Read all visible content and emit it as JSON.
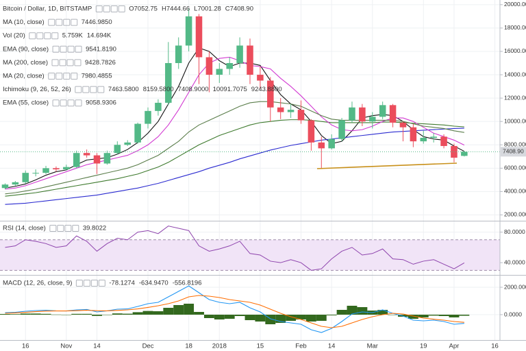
{
  "chart_data": {
    "type": "candlestick",
    "title": "Bitcoin / Dollar, 1D, BITSTAMP",
    "ohlc_header": [
      "O7052.75",
      "H7444.66",
      "L7001.28",
      "C7408.90"
    ],
    "categories": [
      null,
      null,
      "16",
      null,
      null,
      null,
      "Nov",
      null,
      null,
      "14",
      null,
      null,
      null,
      null,
      "Dec",
      null,
      null,
      null,
      "18",
      null,
      null,
      "2018",
      null,
      null,
      null,
      "15",
      null,
      null,
      null,
      "Feb",
      null,
      null,
      "14",
      null,
      null,
      null,
      "Mar",
      null,
      null,
      null,
      null,
      "19",
      null,
      null,
      "Apr",
      null,
      null,
      null,
      "16"
    ],
    "open": [
      4300,
      4600,
      4800,
      5600,
      5600,
      6000,
      5900,
      6100,
      7300,
      7100,
      6400,
      7300,
      8000,
      8200,
      9800,
      10900,
      11600,
      15000,
      16500,
      19000,
      15500,
      14000,
      14500,
      15000,
      16500,
      14000,
      13500,
      11200,
      10800,
      11000,
      10100,
      8200,
      7700,
      8500,
      10100,
      11200,
      10000,
      10400,
      11400,
      9900,
      9500,
      8300,
      8600,
      8700,
      7900,
      7052.75,
      null,
      null,
      null
    ],
    "high": [
      4700,
      4900,
      5800,
      5900,
      6200,
      6150,
      6300,
      7500,
      7600,
      7300,
      7500,
      8300,
      8400,
      9900,
      11200,
      11900,
      16800,
      17200,
      19700,
      19200,
      16000,
      15000,
      15500,
      17200,
      17100,
      14700,
      13800,
      12000,
      11500,
      11800,
      10200,
      8700,
      8900,
      10300,
      11700,
      11500,
      10800,
      11700,
      11500,
      10000,
      9800,
      9200,
      9000,
      8900,
      8100,
      7444.66,
      null,
      null,
      null
    ],
    "low": [
      4200,
      4500,
      4700,
      5300,
      5500,
      5700,
      5800,
      6000,
      6900,
      5500,
      6300,
      7200,
      7900,
      8100,
      9400,
      10500,
      11400,
      14500,
      16000,
      13200,
      12500,
      13300,
      14000,
      14600,
      13200,
      12800,
      10000,
      10200,
      10300,
      9800,
      7500,
      6000,
      7600,
      8300,
      9900,
      9600,
      9400,
      10200,
      9500,
      8300,
      7800,
      8100,
      8200,
      7700,
      6500,
      7001.28,
      null,
      null,
      null
    ],
    "close": [
      4600,
      4800,
      5600,
      5600,
      6000,
      5900,
      6100,
      7300,
      7100,
      6400,
      7300,
      8000,
      8200,
      9800,
      10900,
      11600,
      15000,
      16500,
      19000,
      15500,
      14000,
      14500,
      15000,
      16500,
      14000,
      13500,
      11200,
      10800,
      11000,
      10100,
      8200,
      7700,
      8500,
      10100,
      11200,
      10000,
      10400,
      11400,
      9900,
      9500,
      8300,
      8600,
      8700,
      7900,
      6900,
      7408.9,
      null,
      null,
      null
    ],
    "up_color": "#53b987",
    "down_color": "#eb4d5c",
    "ylim": [
      1500,
      20400
    ],
    "yticks": [
      {
        "value": 2000,
        "label": "2000.0000"
      },
      {
        "value": 4000,
        "label": "4000.0000"
      },
      {
        "value": 6000,
        "label": "6000.0000"
      },
      {
        "value": 8000,
        "label": "8000.0000"
      },
      {
        "value": 10000,
        "label": "10000.0000"
      },
      {
        "value": 12000,
        "label": "12000.0000"
      },
      {
        "value": 14000,
        "label": "14000.0000"
      },
      {
        "value": 16000,
        "label": "16000.0000"
      },
      {
        "value": 18000,
        "label": "18000.0000"
      },
      {
        "value": 20000,
        "label": "20000.0000"
      }
    ],
    "grid": true,
    "last_price": {
      "value": 7408.9,
      "label": "7408.90"
    },
    "volume_legend": {
      "name": "Vol (20)",
      "values": [
        {
          "text": "5.759K",
          "color": "#3c9a4a"
        },
        {
          "text": "14.694K",
          "color": "#2196f3"
        }
      ]
    },
    "ichimoku_legend": {
      "name": "Ichimoku (9, 26, 52, 26)",
      "values": [
        {
          "text": "7463.5800",
          "color": "#2196f3"
        },
        {
          "text": "8159.5800",
          "color": "#8b1a1a"
        },
        {
          "text": "7408.9000",
          "color": "#3c9a4a"
        },
        {
          "text": "10091.7075",
          "color": "#3c9a4a"
        },
        {
          "text": "9243.8800",
          "color": "#e53935"
        }
      ]
    },
    "series": [
      {
        "name": "MA (10, close)",
        "color": "#111111",
        "legend_value": "7446.9850",
        "values": [
          4300,
          4450,
          4650,
          5000,
          5400,
          5700,
          5850,
          6300,
          6700,
          6800,
          6900,
          7200,
          7600,
          8200,
          9000,
          10000,
          11500,
          13000,
          15000,
          16300,
          16000,
          15200,
          14700,
          15000,
          15000,
          14800,
          13500,
          12300,
          11500,
          11000,
          10000,
          8800,
          8100,
          8300,
          9200,
          10300,
          10500,
          10600,
          10500,
          10000,
          9300,
          8700,
          8500,
          8400,
          7900,
          7446.985,
          null,
          null,
          null
        ]
      },
      {
        "name": "EMA (90, close)",
        "color": "#3e7a2e",
        "legend_value": "9541.8190",
        "values": [
          3600,
          3700,
          3800,
          3900,
          4050,
          4200,
          4350,
          4500,
          4650,
          4800,
          4950,
          5100,
          5300,
          5500,
          5800,
          6100,
          6500,
          7000,
          7500,
          8000,
          8400,
          8800,
          9100,
          9400,
          9700,
          9900,
          10000,
          10100,
          10150,
          10150,
          10100,
          10000,
          9900,
          9900,
          9900,
          9900,
          9900,
          9950,
          9950,
          9900,
          9850,
          9800,
          9750,
          9700,
          9600,
          9541.819,
          null,
          null,
          null
        ]
      },
      {
        "name": "MA (200, close)",
        "color": "#2a2ad0",
        "legend_value": "9428.7826",
        "values": [
          2900,
          2950,
          3000,
          3100,
          3200,
          3300,
          3400,
          3500,
          3600,
          3700,
          3850,
          4000,
          4150,
          4300,
          4500,
          4700,
          4950,
          5200,
          5450,
          5700,
          6000,
          6250,
          6500,
          6800,
          7050,
          7300,
          7550,
          7750,
          7950,
          8100,
          8250,
          8400,
          8500,
          8600,
          8700,
          8800,
          8900,
          9000,
          9100,
          9150,
          9200,
          9250,
          9300,
          9350,
          9400,
          9428.7826,
          null,
          null,
          null
        ]
      },
      {
        "name": "MA (20, close)",
        "color": "#d23ad2",
        "legend_value": "7980.4855",
        "values": [
          4200,
          4300,
          4500,
          4800,
          5100,
          5400,
          5700,
          6000,
          6300,
          6500,
          6700,
          6900,
          7100,
          7500,
          8000,
          8700,
          9700,
          11000,
          12500,
          14000,
          15000,
          15400,
          15500,
          15200,
          14800,
          14700,
          14500,
          13700,
          13000,
          12200,
          11300,
          10400,
          9700,
          9300,
          9200,
          9300,
          9600,
          10000,
          10300,
          10300,
          10000,
          9500,
          9000,
          8700,
          8400,
          7980.4855,
          null,
          null,
          null
        ]
      },
      {
        "name": "EMA (55, close)",
        "color": "#5a7d4a",
        "legend_value": "9058.9306",
        "values": [
          3800,
          3900,
          4050,
          4200,
          4400,
          4600,
          4800,
          5000,
          5200,
          5400,
          5600,
          5800,
          6000,
          6300,
          6700,
          7100,
          7700,
          8300,
          9100,
          9700,
          10100,
          10500,
          10900,
          11300,
          11600,
          11700,
          11700,
          11600,
          11500,
          11300,
          10900,
          10500,
          10200,
          10100,
          10100,
          10100,
          10100,
          10100,
          10100,
          10000,
          9800,
          9600,
          9500,
          9400,
          9200,
          9058.9306,
          null,
          null,
          null
        ]
      }
    ],
    "rsi": {
      "name": "RSI (14, close)",
      "legend_value": "39.8022",
      "color": "#8e44ad",
      "values": [
        60,
        62,
        70,
        68,
        65,
        60,
        62,
        75,
        68,
        55,
        65,
        72,
        70,
        80,
        82,
        78,
        88,
        85,
        82,
        62,
        55,
        58,
        62,
        68,
        52,
        50,
        42,
        40,
        44,
        40,
        30,
        32,
        45,
        55,
        60,
        50,
        52,
        58,
        45,
        44,
        38,
        42,
        44,
        38,
        32,
        39.8022,
        null,
        null,
        null
      ],
      "ylim": [
        24,
        94
      ],
      "yticks": [
        {
          "value": 40,
          "label": "40.0000"
        },
        {
          "value": 80,
          "label": "80.0000"
        }
      ],
      "band": [
        30,
        70
      ],
      "band_color": "#f1e4f7"
    },
    "macd": {
      "name": "MACD (12, 26, close, 9)",
      "ylim": [
        -1850,
        2850
      ],
      "yticks": [
        {
          "value": 0,
          "label": "0.0000"
        },
        {
          "value": 2000,
          "label": "2000.0000"
        }
      ],
      "series": [
        {
          "kind": "histogram",
          "color": "#33691e",
          "legend_value": "-78.1274",
          "values": [
            50,
            40,
            80,
            80,
            60,
            10,
            0,
            60,
            60,
            -90,
            0,
            90,
            70,
            180,
            270,
            250,
            500,
            700,
            800,
            200,
            -250,
            -350,
            -300,
            -100,
            -400,
            -500,
            -700,
            -600,
            -450,
            -350,
            -500,
            -450,
            -50,
            350,
            650,
            550,
            300,
            350,
            0,
            -150,
            -300,
            -200,
            -70,
            -100,
            -200,
            -78.1274,
            null,
            null,
            null
          ]
        },
        {
          "kind": "line",
          "color": "#2196f3",
          "legend_value": "-634.9470",
          "values": [
            150,
            170,
            250,
            300,
            320,
            280,
            270,
            350,
            380,
            200,
            280,
            400,
            420,
            600,
            800,
            900,
            1300,
            1700,
            2100,
            1600,
            1100,
            900,
            800,
            900,
            500,
            200,
            -300,
            -500,
            -600,
            -700,
            -1100,
            -1300,
            -1000,
            -500,
            50,
            200,
            150,
            350,
            100,
            -100,
            -400,
            -450,
            -400,
            -500,
            -700,
            -634.947,
            null,
            null,
            null
          ]
        },
        {
          "kind": "line",
          "color": "#ff6d00",
          "legend_value": "-556.8196",
          "values": [
            100,
            130,
            170,
            220,
            260,
            270,
            270,
            290,
            320,
            290,
            280,
            310,
            350,
            420,
            530,
            650,
            800,
            1000,
            1300,
            1400,
            1350,
            1250,
            1100,
            1000,
            900,
            700,
            400,
            100,
            -150,
            -350,
            -600,
            -850,
            -950,
            -850,
            -600,
            -350,
            -150,
            0,
            100,
            50,
            -100,
            -250,
            -330,
            -400,
            -500,
            -556.8196,
            null,
            null,
            null
          ]
        }
      ]
    }
  }
}
